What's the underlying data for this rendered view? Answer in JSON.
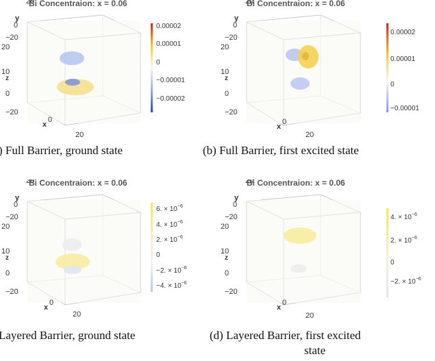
{
  "panels": [
    {
      "title": "Bi Concentraion: x = 0.06",
      "caption": ") Full Barrier, ground state",
      "colorbar_ticks": [
        "0.00002",
        "0.00001",
        "0",
        "−0.00001",
        "−0.00002"
      ],
      "scheme": "blue-white-red"
    },
    {
      "title": "Bi Concentraion: x = 0.06",
      "caption": "(b) Full Barrier, first excited state",
      "colorbar_ticks": [
        "0.00002",
        "0.00001",
        "0",
        "−0.00001"
      ],
      "scheme": "blue-white-red"
    },
    {
      "title": "Bi Concentraion: x = 0.06",
      "caption": "Layered Barrier, ground state",
      "colorbar_ticks": [
        "6. × 10",
        "4. × 10",
        "2. × 10",
        "0",
        "−2. × 10",
        "−4. × 10"
      ],
      "colorbar_exponent": "−6",
      "scheme": "gray-yellow"
    },
    {
      "title": "Bi Concentraion: x = 0.06",
      "caption_line1": "(d) Layered Barrier, first excited",
      "caption_line2": "state",
      "colorbar_ticks": [
        "4. × 10",
        "2. × 10",
        "0",
        "−2. × 10"
      ],
      "colorbar_exponent": "−6",
      "scheme": "gray-yellow"
    }
  ],
  "axis_labels": {
    "y": "y",
    "x": "x",
    "z": "z",
    "tick_neg": "−20",
    "tick_zero": "0",
    "tick_pos": "20",
    "tick_ten": "10"
  }
}
